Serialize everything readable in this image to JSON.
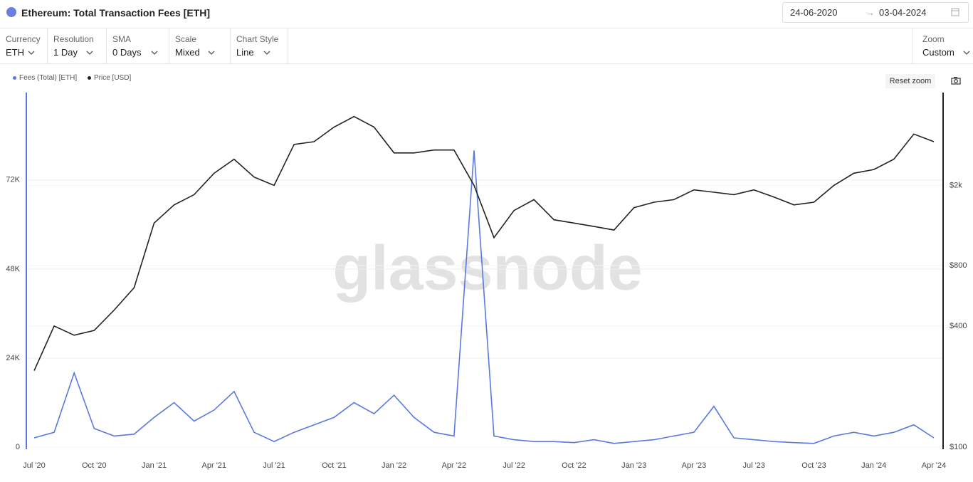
{
  "header": {
    "title": "Ethereum: Total Transaction Fees [ETH]",
    "date_from": "24-06-2020",
    "date_to": "03-04-2024"
  },
  "controls": [
    {
      "label": "Currency",
      "value": "ETH"
    },
    {
      "label": "Resolution",
      "value": "1 Day"
    },
    {
      "label": "SMA",
      "value": "0 Days"
    },
    {
      "label": "Scale",
      "value": "Mixed"
    },
    {
      "label": "Chart Style",
      "value": "Line"
    }
  ],
  "zoom": {
    "label": "Zoom",
    "value": "Custom"
  },
  "reset_zoom": "Reset zoom",
  "watermark": "glassnode",
  "chart_data": {
    "type": "line",
    "categories": [
      "Jul '20",
      null,
      null,
      "Oct '20",
      null,
      null,
      "Jan '21",
      null,
      null,
      "Apr '21",
      null,
      null,
      "Jul '21",
      null,
      null,
      "Oct '21",
      null,
      null,
      "Jan '22",
      null,
      null,
      "Apr '22",
      null,
      null,
      "Jul '22",
      null,
      null,
      "Oct '22",
      null,
      null,
      "Jan '23",
      null,
      null,
      "Apr '23",
      null,
      null,
      "Jul '23",
      null,
      null,
      "Oct '23",
      null,
      null,
      "Jan '24",
      null,
      null,
      "Apr '24"
    ],
    "series": [
      {
        "name": "Fees (Total) [ETH]",
        "color": "#5b78e0",
        "axis": "y",
        "values": [
          2500,
          4000,
          20000,
          5000,
          3000,
          3500,
          8000,
          12000,
          7000,
          10000,
          15000,
          4000,
          1500,
          4000,
          6000,
          8000,
          12000,
          9000,
          14000,
          8000,
          4000,
          3000,
          80000,
          3000,
          2000,
          1500,
          1500,
          1200,
          2000,
          1000,
          1500,
          2000,
          3000,
          4000,
          11000,
          2500,
          2000,
          1500,
          1200,
          1000,
          3000,
          4000,
          3000,
          4000,
          6000,
          2500
        ]
      },
      {
        "name": "Price [USD]",
        "color": "#222222",
        "axis": "y2",
        "values": [
          240,
          400,
          360,
          380,
          480,
          620,
          1300,
          1600,
          1800,
          2300,
          2700,
          2200,
          2000,
          3200,
          3300,
          3900,
          4400,
          3900,
          2900,
          2900,
          3000,
          3000,
          2000,
          1100,
          1500,
          1700,
          1350,
          1300,
          1250,
          1200,
          1550,
          1650,
          1700,
          1900,
          1850,
          1800,
          1900,
          1750,
          1600,
          1650,
          2000,
          2300,
          2400,
          2700,
          3600,
          3300
        ]
      }
    ],
    "ylim": [
      0,
      95000
    ],
    "yticks": [
      0,
      {
        "value": 24000,
        "label": "24K"
      },
      {
        "value": 48000,
        "label": "48K"
      },
      {
        "value": 72000,
        "label": "72K"
      }
    ],
    "y2lim": [
      100,
      5650
    ],
    "y2log": true,
    "y2ticks": [
      {
        "value": 100,
        "label": "$100"
      },
      {
        "value": 400,
        "label": "$400"
      },
      {
        "value": 800,
        "label": "$800"
      },
      {
        "value": 2000,
        "label": "$2k"
      }
    ],
    "grid": true
  }
}
